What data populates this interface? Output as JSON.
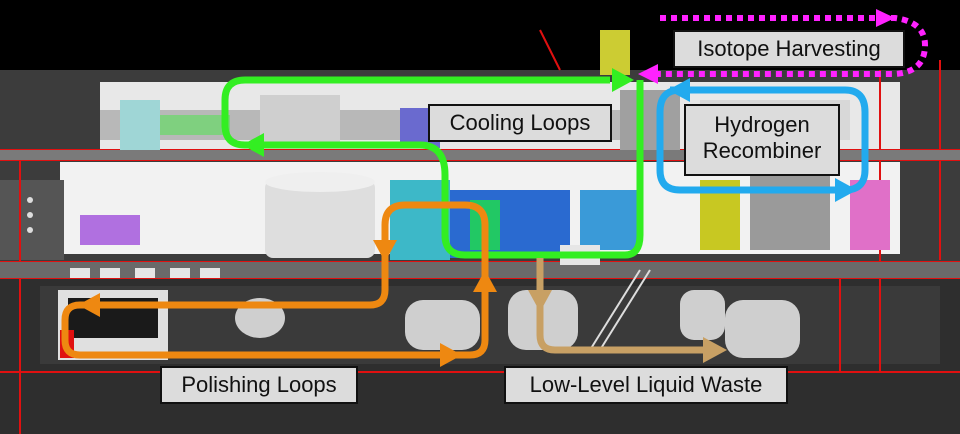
{
  "labels": {
    "isotope_harvesting": "Isotope Harvesting",
    "cooling_loops": "Cooling Loops",
    "hydrogen_recombiner_line1": "Hydrogen",
    "hydrogen_recombiner_line2": "Recombiner",
    "polishing_loops": "Polishing Loops",
    "low_level_liquid_waste": "Low-Level Liquid Waste"
  },
  "loop_colors": {
    "isotope_harvesting": "#ff22ff",
    "cooling_loops": "#33ee22",
    "hydrogen_recombiner": "#22aaee",
    "polishing_loops": "#ee8811",
    "low_level_liquid_waste": "#c8a064"
  }
}
